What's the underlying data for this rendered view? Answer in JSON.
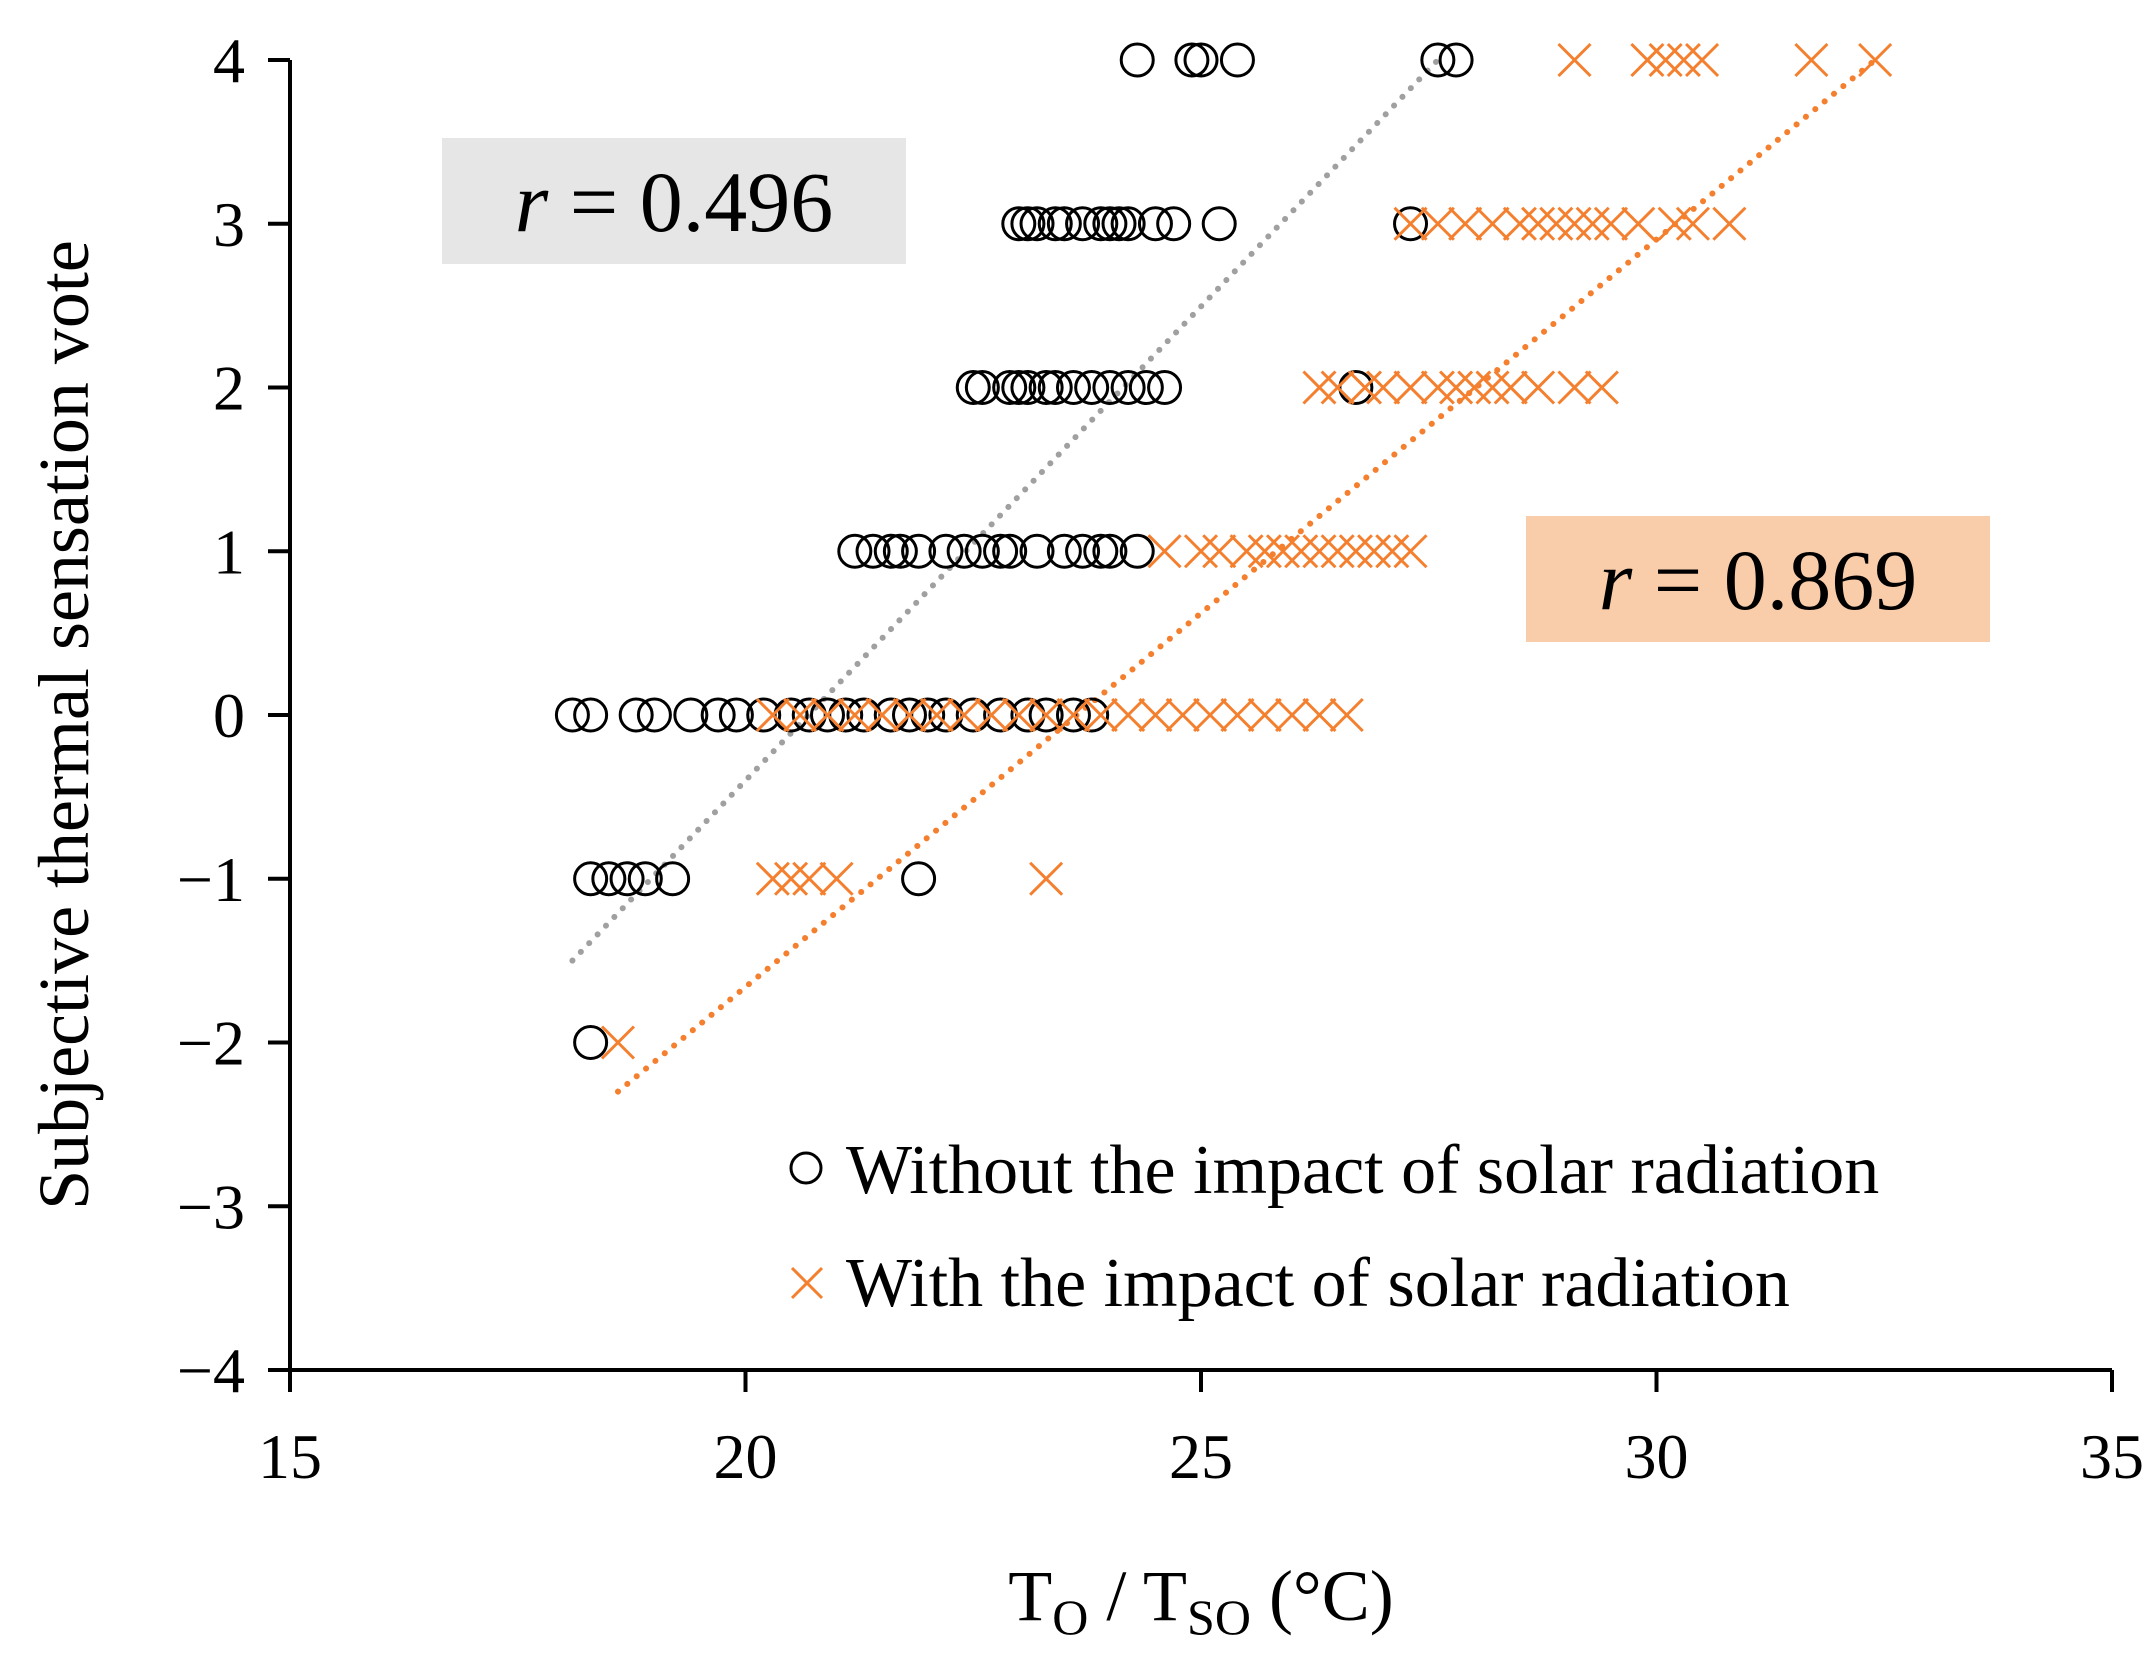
{
  "chart_data": {
    "type": "scatter",
    "title": "",
    "xlabel": {
      "main1": "T",
      "sub1": "O",
      "sep": " / T",
      "sub2": "SO",
      "unit": " (°C)"
    },
    "ylabel": "Subjective thermal sensation vote",
    "xlim": [
      15,
      35
    ],
    "ylim": [
      -4,
      4
    ],
    "xticks": [
      "15",
      "20",
      "25",
      "30",
      "35"
    ],
    "yticks": [
      "4",
      "3",
      "2",
      "1",
      "0",
      "−1",
      "−2",
      "−3",
      "−4"
    ],
    "legend_position": "bottom-right",
    "series": [
      {
        "name": "Without the impact of solar radiation",
        "marker": "circle",
        "color": "#000000",
        "points": [
          [
            24.3,
            4
          ],
          [
            24.9,
            4
          ],
          [
            25.0,
            4
          ],
          [
            25.4,
            4
          ],
          [
            27.6,
            4
          ],
          [
            27.8,
            4
          ],
          [
            23.0,
            3
          ],
          [
            23.1,
            3
          ],
          [
            23.2,
            3
          ],
          [
            23.4,
            3
          ],
          [
            23.5,
            3
          ],
          [
            23.7,
            3
          ],
          [
            23.9,
            3
          ],
          [
            24.0,
            3
          ],
          [
            24.1,
            3
          ],
          [
            24.2,
            3
          ],
          [
            24.5,
            3
          ],
          [
            24.7,
            3
          ],
          [
            25.2,
            3
          ],
          [
            27.3,
            3
          ],
          [
            22.5,
            2
          ],
          [
            22.6,
            2
          ],
          [
            22.9,
            2
          ],
          [
            23.0,
            2
          ],
          [
            23.1,
            2
          ],
          [
            23.3,
            2
          ],
          [
            23.4,
            2
          ],
          [
            23.6,
            2
          ],
          [
            23.8,
            2
          ],
          [
            24.0,
            2
          ],
          [
            24.2,
            2
          ],
          [
            24.4,
            2
          ],
          [
            24.6,
            2
          ],
          [
            26.7,
            2
          ],
          [
            21.2,
            1
          ],
          [
            21.4,
            1
          ],
          [
            21.6,
            1
          ],
          [
            21.7,
            1
          ],
          [
            21.9,
            1
          ],
          [
            22.2,
            1
          ],
          [
            22.4,
            1
          ],
          [
            22.6,
            1
          ],
          [
            22.8,
            1
          ],
          [
            22.9,
            1
          ],
          [
            23.2,
            1
          ],
          [
            23.5,
            1
          ],
          [
            23.7,
            1
          ],
          [
            23.9,
            1
          ],
          [
            24.0,
            1
          ],
          [
            24.3,
            1
          ],
          [
            18.1,
            0
          ],
          [
            18.3,
            0
          ],
          [
            18.8,
            0
          ],
          [
            19.0,
            0
          ],
          [
            19.4,
            0
          ],
          [
            19.7,
            0
          ],
          [
            19.9,
            0
          ],
          [
            20.2,
            0
          ],
          [
            20.5,
            0
          ],
          [
            20.7,
            0
          ],
          [
            20.9,
            0
          ],
          [
            21.1,
            0
          ],
          [
            21.3,
            0
          ],
          [
            21.6,
            0
          ],
          [
            21.8,
            0
          ],
          [
            22.0,
            0
          ],
          [
            22.2,
            0
          ],
          [
            22.5,
            0
          ],
          [
            22.8,
            0
          ],
          [
            23.1,
            0
          ],
          [
            23.3,
            0
          ],
          [
            23.6,
            0
          ],
          [
            23.8,
            0
          ],
          [
            18.3,
            -1
          ],
          [
            18.5,
            -1
          ],
          [
            18.7,
            -1
          ],
          [
            18.9,
            -1
          ],
          [
            19.2,
            -1
          ],
          [
            21.9,
            -1
          ],
          [
            18.3,
            -2
          ]
        ]
      },
      {
        "name": "With the impact of solar radiation",
        "marker": "cross",
        "color": "#f4802f",
        "points": [
          [
            29.1,
            4
          ],
          [
            29.9,
            4
          ],
          [
            30.1,
            4
          ],
          [
            30.3,
            4
          ],
          [
            30.5,
            4
          ],
          [
            31.7,
            4
          ],
          [
            32.4,
            4
          ],
          [
            27.3,
            3
          ],
          [
            27.6,
            3
          ],
          [
            27.9,
            3
          ],
          [
            28.2,
            3
          ],
          [
            28.5,
            3
          ],
          [
            28.7,
            3
          ],
          [
            28.9,
            3
          ],
          [
            29.1,
            3
          ],
          [
            29.3,
            3
          ],
          [
            29.5,
            3
          ],
          [
            29.8,
            3
          ],
          [
            30.2,
            3
          ],
          [
            30.4,
            3
          ],
          [
            30.8,
            3
          ],
          [
            26.3,
            2
          ],
          [
            26.5,
            2
          ],
          [
            26.8,
            2
          ],
          [
            27.0,
            2
          ],
          [
            27.3,
            2
          ],
          [
            27.6,
            2
          ],
          [
            27.8,
            2
          ],
          [
            28.0,
            2
          ],
          [
            28.2,
            2
          ],
          [
            28.4,
            2
          ],
          [
            28.7,
            2
          ],
          [
            29.1,
            2
          ],
          [
            29.4,
            2
          ],
          [
            24.6,
            1
          ],
          [
            25.0,
            1
          ],
          [
            25.2,
            1
          ],
          [
            25.5,
            1
          ],
          [
            25.7,
            1
          ],
          [
            25.9,
            1
          ],
          [
            26.1,
            1
          ],
          [
            26.3,
            1
          ],
          [
            26.5,
            1
          ],
          [
            26.7,
            1
          ],
          [
            26.9,
            1
          ],
          [
            27.1,
            1
          ],
          [
            27.3,
            1
          ],
          [
            20.3,
            0
          ],
          [
            20.6,
            0
          ],
          [
            20.9,
            0
          ],
          [
            21.2,
            0
          ],
          [
            21.5,
            0
          ],
          [
            21.8,
            0
          ],
          [
            22.1,
            0
          ],
          [
            22.4,
            0
          ],
          [
            22.7,
            0
          ],
          [
            23.0,
            0
          ],
          [
            23.3,
            0
          ],
          [
            23.6,
            0
          ],
          [
            23.9,
            0
          ],
          [
            24.2,
            0
          ],
          [
            24.5,
            0
          ],
          [
            24.8,
            0
          ],
          [
            25.1,
            0
          ],
          [
            25.4,
            0
          ],
          [
            25.7,
            0
          ],
          [
            26.0,
            0
          ],
          [
            26.3,
            0
          ],
          [
            26.6,
            0
          ],
          [
            20.3,
            -1
          ],
          [
            20.5,
            -1
          ],
          [
            20.7,
            -1
          ],
          [
            21.0,
            -1
          ],
          [
            23.3,
            -1
          ],
          [
            18.6,
            -2
          ]
        ]
      }
    ],
    "trendlines": [
      {
        "series": "Without the impact of solar radiation",
        "color": "#a0a0a0",
        "x": [
          18.1,
          27.6
        ],
        "y": [
          -1.5,
          4.0
        ]
      },
      {
        "series": "With the impact of solar radiation",
        "color": "#f4802f",
        "x": [
          18.6,
          32.4
        ],
        "y": [
          -2.3,
          4.0
        ]
      }
    ],
    "annotations": [
      {
        "italic": "r",
        "text": " = 0.496",
        "bg": "#e6e6e6"
      },
      {
        "italic": "r",
        "text": " = 0.869",
        "bg": "#f9ccaa"
      }
    ]
  }
}
